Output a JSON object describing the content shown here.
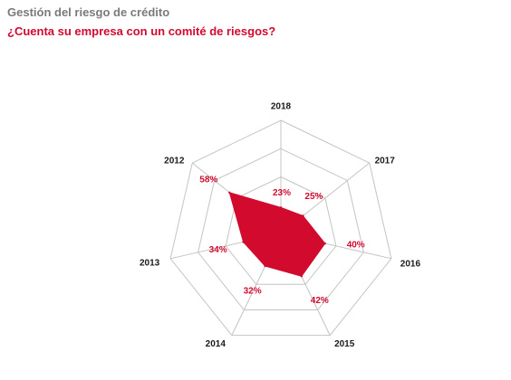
{
  "colors": {
    "accent": "#d10a2e",
    "title_text": "#7a7a7a",
    "grid": "#c4c4c4"
  },
  "chart_data": {
    "type": "radar",
    "title": "Gestión del riesgo de crédito",
    "subtitle": "¿Cuenta su empresa con un comité de riesgos?",
    "categories": [
      "2018",
      "2017",
      "2016",
      "2015",
      "2014",
      "2013",
      "2012"
    ],
    "values": [
      23,
      25,
      40,
      42,
      32,
      34,
      58
    ],
    "value_labels": [
      "23%",
      "25%",
      "40%",
      "42%",
      "32%",
      "34%",
      "58%"
    ],
    "range": [
      0,
      100
    ],
    "grid_levels": [
      50,
      75,
      100
    ],
    "grid": true,
    "legend": false
  }
}
